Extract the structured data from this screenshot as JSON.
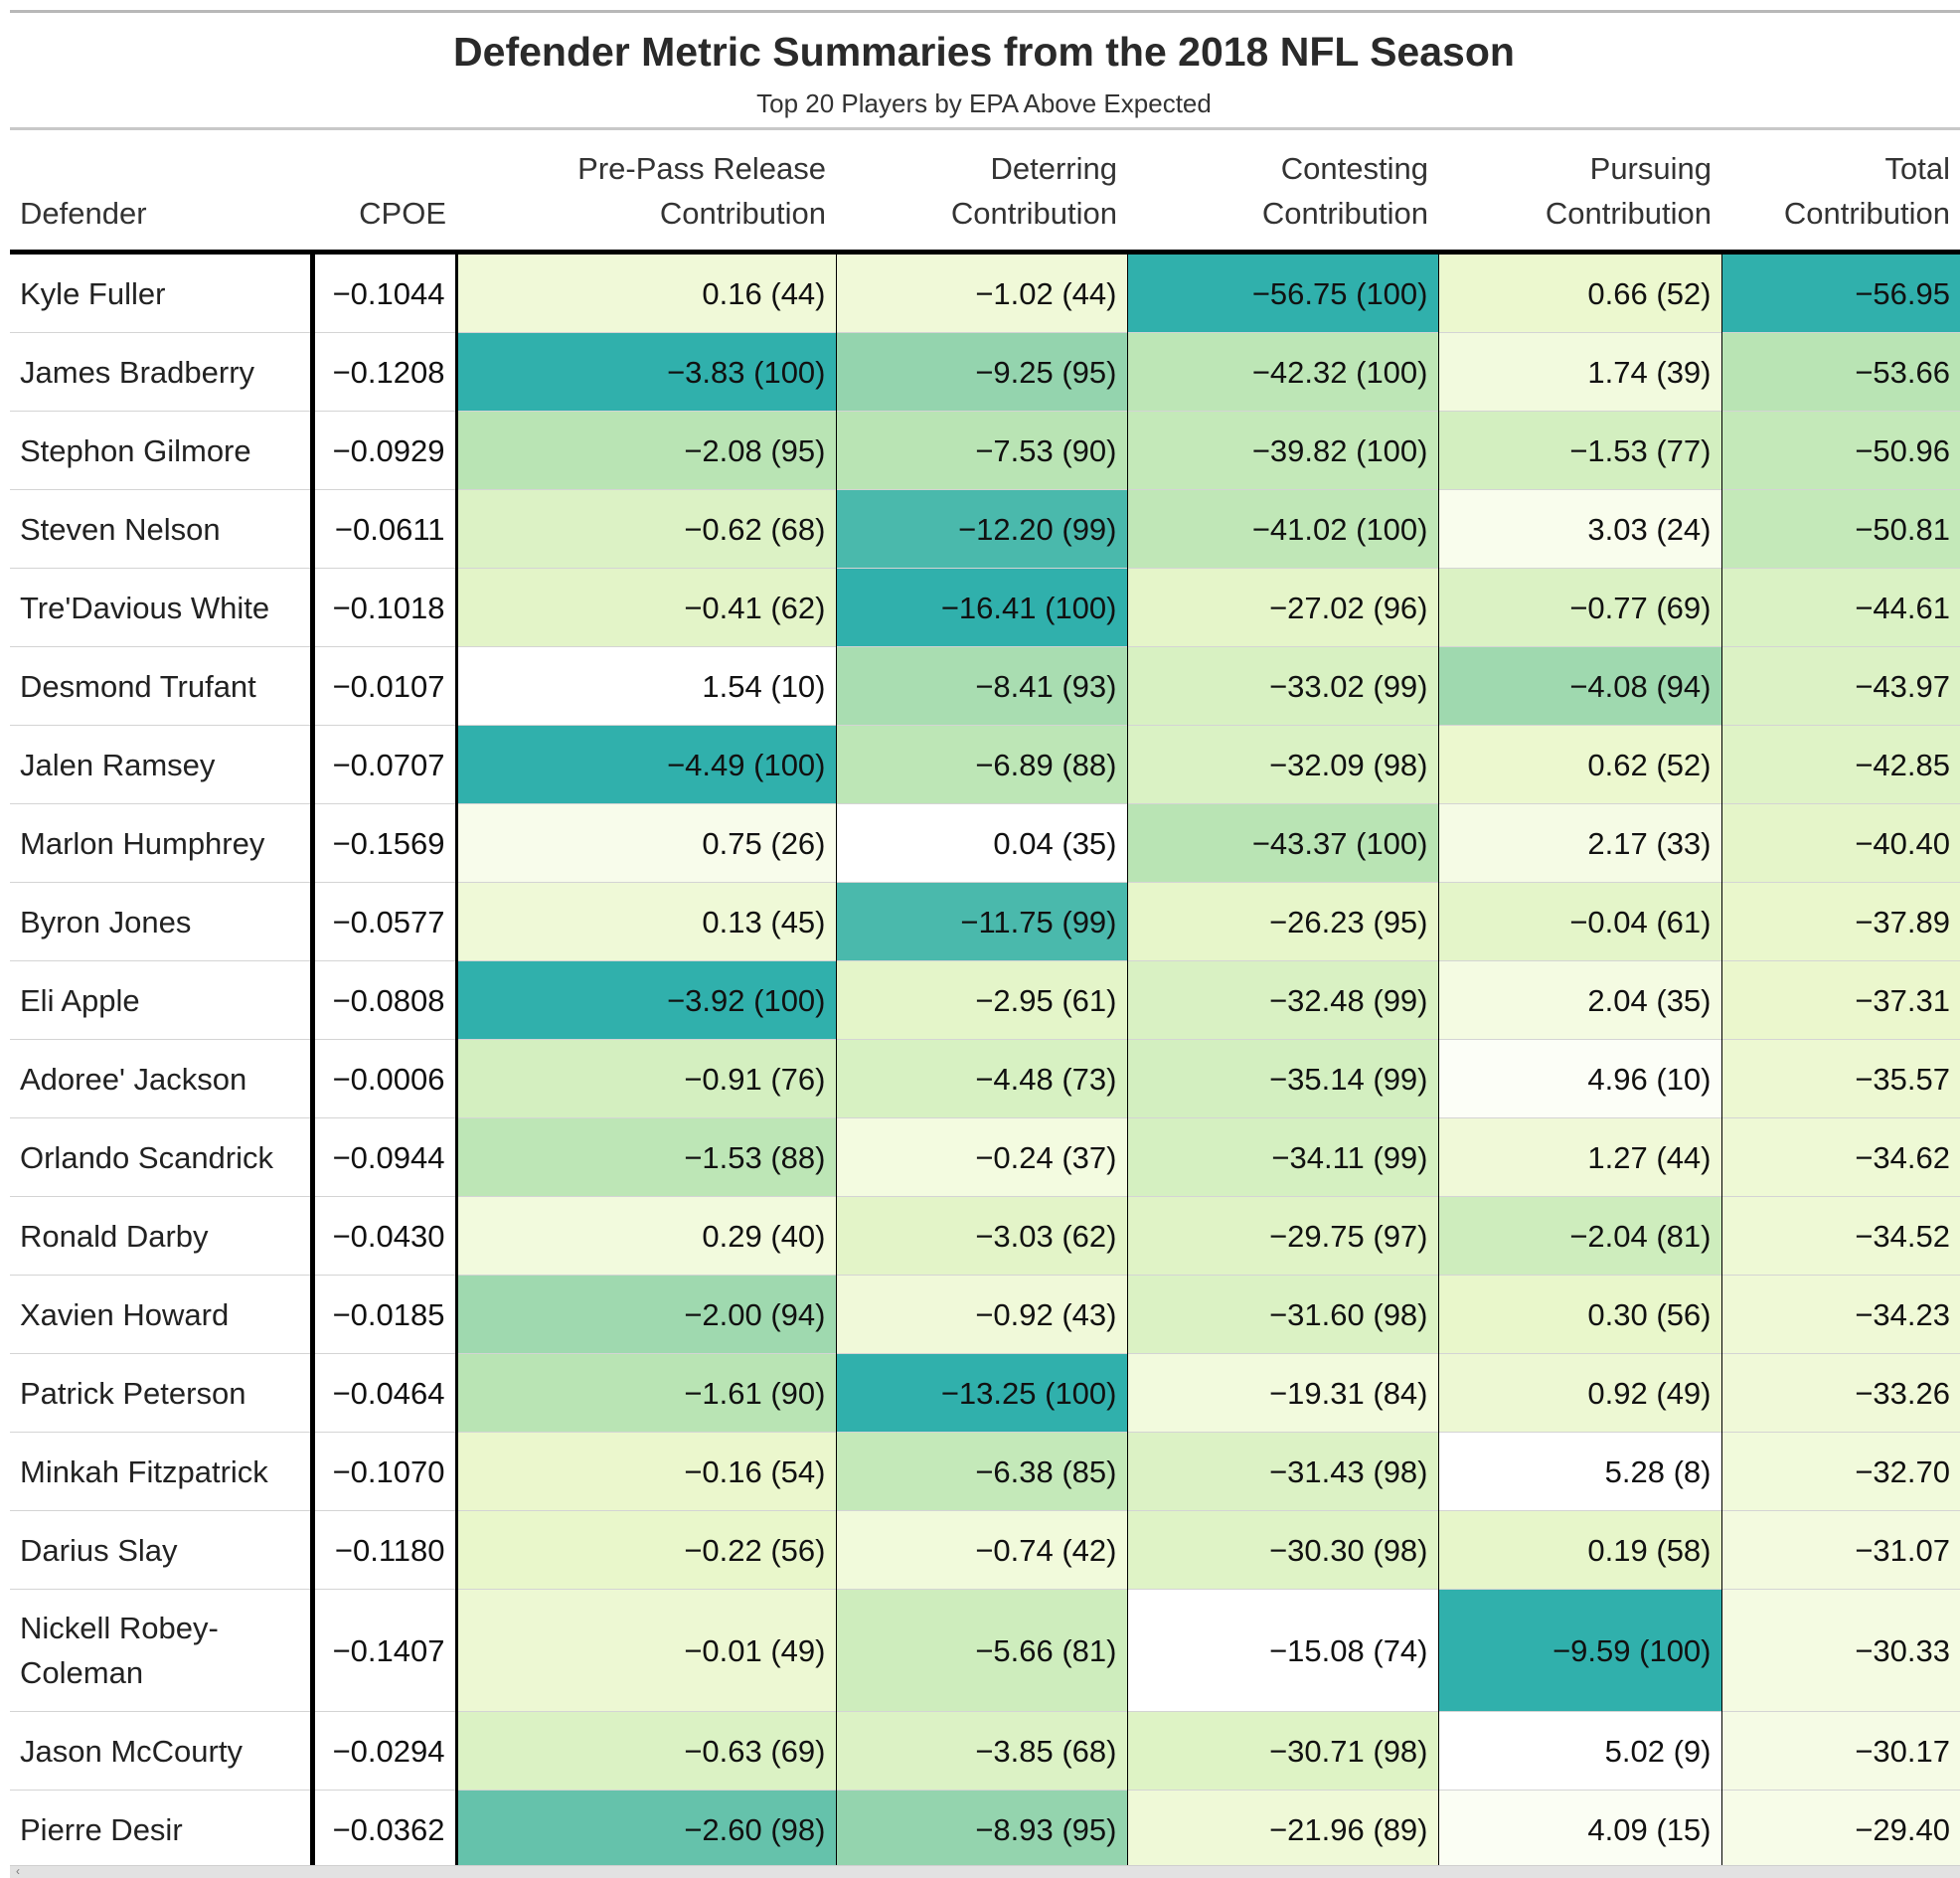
{
  "title": "Defender Metric Summaries from the 2018 NFL Season",
  "subtitle": "Top 20 Players by EPA Above Expected",
  "columns": {
    "defender": "Defender",
    "cpoe": "CPOE",
    "prepass": [
      "Pre-Pass Release",
      "Contribution"
    ],
    "deterring": [
      "Deterring",
      "Contribution"
    ],
    "contesting": [
      "Contesting",
      "Contribution"
    ],
    "pursuing": [
      "Pursuing",
      "Contribution"
    ],
    "total": [
      "Total",
      "Contribution"
    ]
  },
  "scroll_arrow_icon": "chevron-left-icon",
  "colors": {
    "lowest": "#ffffff",
    "light": "#eff9d0",
    "mid": "#bfe6b3",
    "high": "#7fcbab",
    "highest": "#30b0ac"
  },
  "rows": [
    {
      "defender": "Kyle Fuller",
      "cpoe": "−0.1044",
      "prepass": "0.16 (44)",
      "deterring": "−1.02 (44)",
      "contesting": "−56.75 (100)",
      "pursuing": "0.66 (52)",
      "total": "−56.95",
      "shade": {
        "prepass": 44,
        "deterring": 44,
        "contesting": 100,
        "pursuing": 52,
        "total": 100
      }
    },
    {
      "defender": "James Bradberry",
      "cpoe": "−0.1208",
      "prepass": "−3.83 (100)",
      "deterring": "−9.25 (95)",
      "contesting": "−42.32 (100)",
      "pursuing": "1.74 (39)",
      "total": "−53.66",
      "shade": {
        "prepass": 100,
        "deterring": 95,
        "contesting": 88,
        "pursuing": 39,
        "total": 90
      }
    },
    {
      "defender": "Stephon Gilmore",
      "cpoe": "−0.0929",
      "prepass": "−2.08 (95)",
      "deterring": "−7.53 (90)",
      "contesting": "−39.82 (100)",
      "pursuing": "−1.53 (77)",
      "total": "−50.96",
      "shade": {
        "prepass": 90,
        "deterring": 90,
        "contesting": 85,
        "pursuing": 77,
        "total": 85
      }
    },
    {
      "defender": "Steven Nelson",
      "cpoe": "−0.0611",
      "prepass": "−0.62 (68)",
      "deterring": "−12.20 (99)",
      "contesting": "−41.02 (100)",
      "pursuing": "3.03 (24)",
      "total": "−50.81",
      "shade": {
        "prepass": 68,
        "deterring": 99,
        "contesting": 87,
        "pursuing": 24,
        "total": 85
      }
    },
    {
      "defender": "Tre'Davious White",
      "cpoe": "−0.1018",
      "prepass": "−0.41 (62)",
      "deterring": "−16.41 (100)",
      "contesting": "−27.02 (96)",
      "pursuing": "−0.77 (69)",
      "total": "−44.61",
      "shade": {
        "prepass": 62,
        "deterring": 100,
        "contesting": 60,
        "pursuing": 69,
        "total": 70
      }
    },
    {
      "defender": "Desmond Trufant",
      "cpoe": "−0.0107",
      "prepass": "1.54 (10)",
      "deterring": "−8.41 (93)",
      "contesting": "−33.02 (99)",
      "pursuing": "−4.08 (94)",
      "total": "−43.97",
      "shade": {
        "prepass": 0,
        "deterring": 93,
        "contesting": 72,
        "pursuing": 94,
        "total": 68
      }
    },
    {
      "defender": "Jalen Ramsey",
      "cpoe": "−0.0707",
      "prepass": "−4.49 (100)",
      "deterring": "−6.89 (88)",
      "contesting": "−32.09 (98)",
      "pursuing": "0.62 (52)",
      "total": "−42.85",
      "shade": {
        "prepass": 100,
        "deterring": 88,
        "contesting": 70,
        "pursuing": 52,
        "total": 66
      }
    },
    {
      "defender": "Marlon Humphrey",
      "cpoe": "−0.1569",
      "prepass": "0.75 (26)",
      "deterring": "0.04 (35)",
      "contesting": "−43.37 (100)",
      "pursuing": "2.17 (33)",
      "total": "−40.40",
      "shade": {
        "prepass": 26,
        "deterring": 0,
        "contesting": 90,
        "pursuing": 33,
        "total": 60
      }
    },
    {
      "defender": "Byron Jones",
      "cpoe": "−0.0577",
      "prepass": "0.13 (45)",
      "deterring": "−11.75 (99)",
      "contesting": "−26.23 (95)",
      "pursuing": "−0.04 (61)",
      "total": "−37.89",
      "shade": {
        "prepass": 45,
        "deterring": 99,
        "contesting": 58,
        "pursuing": 61,
        "total": 55
      }
    },
    {
      "defender": "Eli Apple",
      "cpoe": "−0.0808",
      "prepass": "−3.92 (100)",
      "deterring": "−2.95 (61)",
      "contesting": "−32.48 (99)",
      "pursuing": "2.04 (35)",
      "total": "−37.31",
      "shade": {
        "prepass": 100,
        "deterring": 61,
        "contesting": 71,
        "pursuing": 35,
        "total": 54
      }
    },
    {
      "defender": "Adoree' Jackson",
      "cpoe": "−0.0006",
      "prepass": "−0.91 (76)",
      "deterring": "−4.48 (73)",
      "contesting": "−35.14 (99)",
      "pursuing": "4.96 (10)",
      "total": "−35.57",
      "shade": {
        "prepass": 76,
        "deterring": 73,
        "contesting": 77,
        "pursuing": 10,
        "total": 50
      }
    },
    {
      "defender": "Orlando Scandrick",
      "cpoe": "−0.0944",
      "prepass": "−1.53 (88)",
      "deterring": "−0.24 (37)",
      "contesting": "−34.11 (99)",
      "pursuing": "1.27 (44)",
      "total": "−34.62",
      "shade": {
        "prepass": 88,
        "deterring": 37,
        "contesting": 75,
        "pursuing": 44,
        "total": 47
      }
    },
    {
      "defender": "Ronald Darby",
      "cpoe": "−0.0430",
      "prepass": "0.29 (40)",
      "deterring": "−3.03 (62)",
      "contesting": "−29.75 (97)",
      "pursuing": "−2.04 (81)",
      "total": "−34.52",
      "shade": {
        "prepass": 40,
        "deterring": 62,
        "contesting": 65,
        "pursuing": 81,
        "total": 47
      }
    },
    {
      "defender": "Xavien Howard",
      "cpoe": "−0.0185",
      "prepass": "−2.00 (94)",
      "deterring": "−0.92 (43)",
      "contesting": "−31.60 (98)",
      "pursuing": "0.30 (56)",
      "total": "−34.23",
      "shade": {
        "prepass": 94,
        "deterring": 43,
        "contesting": 69,
        "pursuing": 56,
        "total": 46
      }
    },
    {
      "defender": "Patrick Peterson",
      "cpoe": "−0.0464",
      "prepass": "−1.61 (90)",
      "deterring": "−13.25 (100)",
      "contesting": "−19.31 (84)",
      "pursuing": "0.92 (49)",
      "total": "−33.26",
      "shade": {
        "prepass": 90,
        "deterring": 100,
        "contesting": 40,
        "pursuing": 49,
        "total": 44
      }
    },
    {
      "defender": "Minkah Fitzpatrick",
      "cpoe": "−0.1070",
      "prepass": "−0.16 (54)",
      "deterring": "−6.38 (85)",
      "contesting": "−31.43 (98)",
      "pursuing": "5.28 (8)",
      "total": "−32.70",
      "shade": {
        "prepass": 54,
        "deterring": 85,
        "contesting": 68,
        "pursuing": 0,
        "total": 42
      }
    },
    {
      "defender": "Darius Slay",
      "cpoe": "−0.1180",
      "prepass": "−0.22 (56)",
      "deterring": "−0.74 (42)",
      "contesting": "−30.30 (98)",
      "pursuing": "0.19 (58)",
      "total": "−31.07",
      "shade": {
        "prepass": 56,
        "deterring": 42,
        "contesting": 66,
        "pursuing": 58,
        "total": 38
      }
    },
    {
      "defender": "Nickell Robey-Coleman",
      "cpoe": "−0.1407",
      "prepass": "−0.01 (49)",
      "deterring": "−5.66 (81)",
      "contesting": "−15.08 (74)",
      "pursuing": "−9.59 (100)",
      "total": "−30.33",
      "shade": {
        "prepass": 49,
        "deterring": 81,
        "contesting": 0,
        "pursuing": 100,
        "total": 35
      }
    },
    {
      "defender": "Jason McCourty",
      "cpoe": "−0.0294",
      "prepass": "−0.63 (69)",
      "deterring": "−3.85 (68)",
      "contesting": "−30.71 (98)",
      "pursuing": "5.02 (9)",
      "total": "−30.17",
      "shade": {
        "prepass": 69,
        "deterring": 68,
        "contesting": 67,
        "pursuing": 0,
        "total": 33
      }
    },
    {
      "defender": "Pierre Desir",
      "cpoe": "−0.0362",
      "prepass": "−2.60 (98)",
      "deterring": "−8.93 (95)",
      "contesting": "−21.96 (89)",
      "pursuing": "4.09 (15)",
      "total": "−29.40",
      "shade": {
        "prepass": 98,
        "deterring": 95,
        "contesting": 45,
        "pursuing": 15,
        "total": 30
      }
    }
  ]
}
